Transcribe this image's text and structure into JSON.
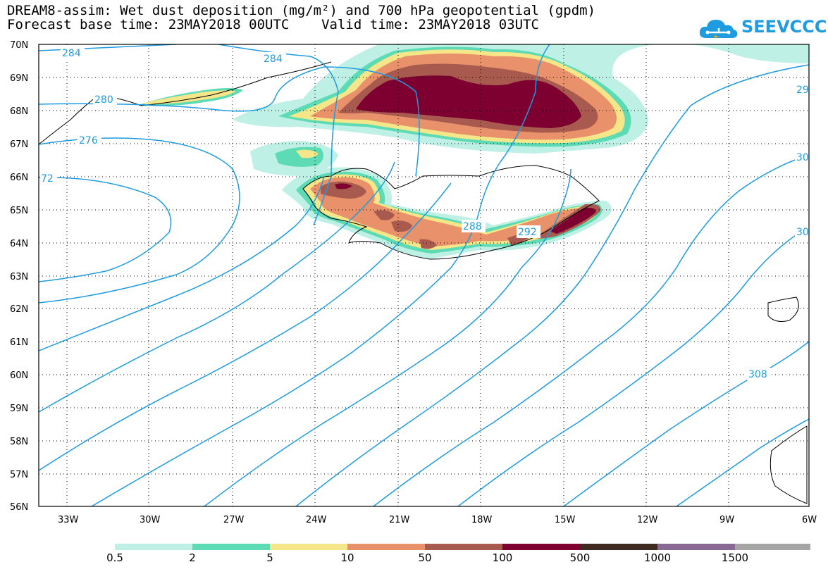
{
  "title_line1": "DREAM8-assim: Wet dust deposition (mg/m²) and 700 hPa geopotential (gpdm)",
  "title_line2": "Forecast base time: 23MAY2018 00UTC    Valid time: 23MAY2018 03UTC",
  "logo": {
    "text": "SEEVCCC",
    "icon": "cloud-logo-icon",
    "color": "#1f9be0"
  },
  "map": {
    "lat_labels": [
      "70N",
      "69N",
      "68N",
      "67N",
      "66N",
      "65N",
      "64N",
      "63N",
      "62N",
      "61N",
      "60N",
      "59N",
      "58N",
      "57N",
      "56N"
    ],
    "lon_labels": [
      "33W",
      "30W",
      "27W",
      "24W",
      "21W",
      "18W",
      "15W",
      "12W",
      "9W",
      "6W"
    ],
    "contour_labels": [
      "284",
      "284",
      "280",
      "276",
      "72",
      "288",
      "292",
      "29",
      "30",
      "30",
      "308"
    ],
    "contour_color": "#1f9be0"
  },
  "legend": {
    "colors": [
      "#bff0e6",
      "#5cdbb4",
      "#f5e68a",
      "#e8916a",
      "#a85a4e",
      "#7d0030",
      "#3e2a20",
      "#8a6896",
      "#a6a6a6"
    ],
    "labels": [
      "0.5",
      "2",
      "5",
      "10",
      "50",
      "100",
      "500",
      "1000",
      "1500"
    ]
  }
}
